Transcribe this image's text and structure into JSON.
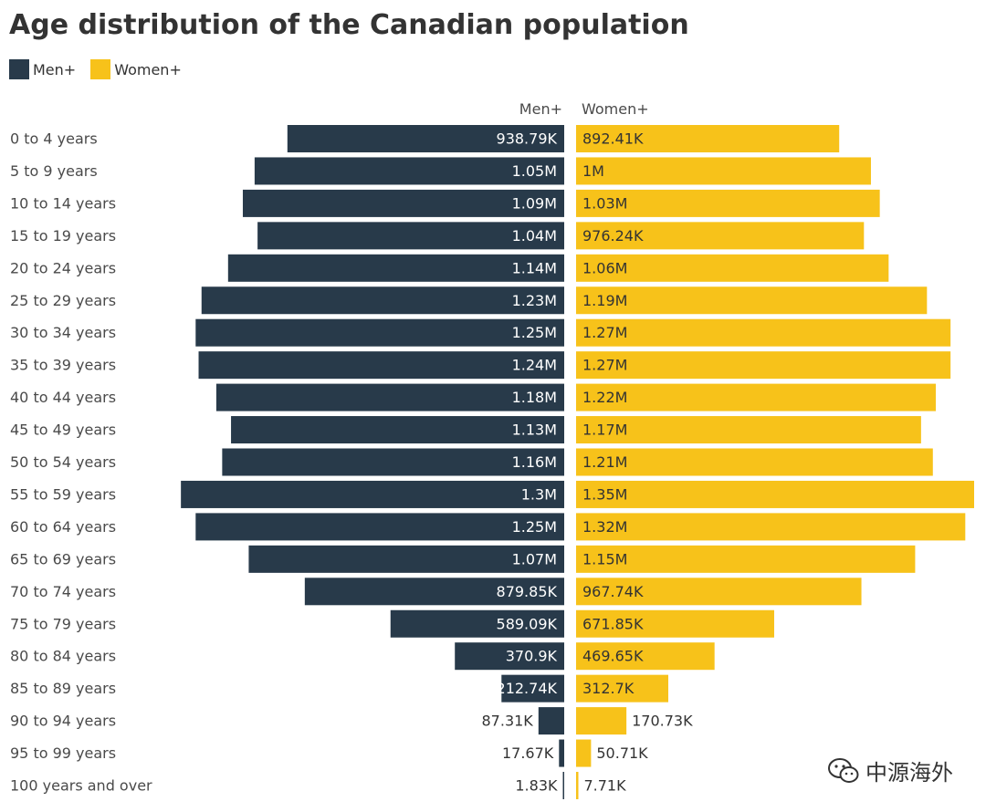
{
  "title": "Age distribution of the Canadian population",
  "legend": {
    "men_label": "Men+",
    "women_label": "Women+"
  },
  "colors": {
    "men": "#283a4a",
    "women": "#f7c21a",
    "label_light": "#ffffff",
    "label_dark": "#333333",
    "axis_text": "#4a4a4a"
  },
  "watermark": {
    "text": "中源海外",
    "icon": "wechat-icon"
  },
  "chart_data": {
    "type": "bar",
    "orientation": "horizontal",
    "layout": "population-pyramid",
    "title": "Age distribution of the Canadian population",
    "categories": [
      "0 to 4 years",
      "5 to 9 years",
      "10 to 14 years",
      "15 to 19 years",
      "20 to 24 years",
      "25 to 29 years",
      "30 to 34 years",
      "35 to 39 years",
      "40 to 44 years",
      "45 to 49 years",
      "50 to 54 years",
      "55 to 59 years",
      "60 to 64 years",
      "65 to 69 years",
      "70 to 74 years",
      "75 to 79 years",
      "80 to 84 years",
      "85 to 89 years",
      "90 to 94 years",
      "95 to 99 years",
      "100 years and over"
    ],
    "series": [
      {
        "name": "Men+",
        "side": "left",
        "values": [
          938790,
          1050000,
          1090000,
          1040000,
          1140000,
          1230000,
          1250000,
          1240000,
          1180000,
          1130000,
          1160000,
          1300000,
          1250000,
          1070000,
          879850,
          589090,
          370900,
          212740,
          87310,
          17670,
          1830
        ],
        "labels": [
          "938.79K",
          "1.05M",
          "1.09M",
          "1.04M",
          "1.14M",
          "1.23M",
          "1.25M",
          "1.24M",
          "1.18M",
          "1.13M",
          "1.16M",
          "1.3M",
          "1.25M",
          "1.07M",
          "879.85K",
          "589.09K",
          "370.9K",
          "212.74K",
          "87.31K",
          "17.67K",
          "1.83K"
        ]
      },
      {
        "name": "Women+",
        "side": "right",
        "values": [
          892410,
          1000000,
          1030000,
          976240,
          1060000,
          1190000,
          1270000,
          1270000,
          1220000,
          1170000,
          1210000,
          1350000,
          1320000,
          1150000,
          967740,
          671850,
          469650,
          312700,
          170730,
          50710,
          7710
        ],
        "labels": [
          "892.41K",
          "1M",
          "1.03M",
          "976.24K",
          "1.06M",
          "1.19M",
          "1.27M",
          "1.27M",
          "1.22M",
          "1.17M",
          "1.21M",
          "1.35M",
          "1.32M",
          "1.15M",
          "967.74K",
          "671.85K",
          "469.65K",
          "312.7K",
          "170.73K",
          "50.71K",
          "7.71K"
        ]
      }
    ],
    "xlim": [
      0,
      1350000
    ],
    "grid": false,
    "legend_position": "top-left"
  }
}
